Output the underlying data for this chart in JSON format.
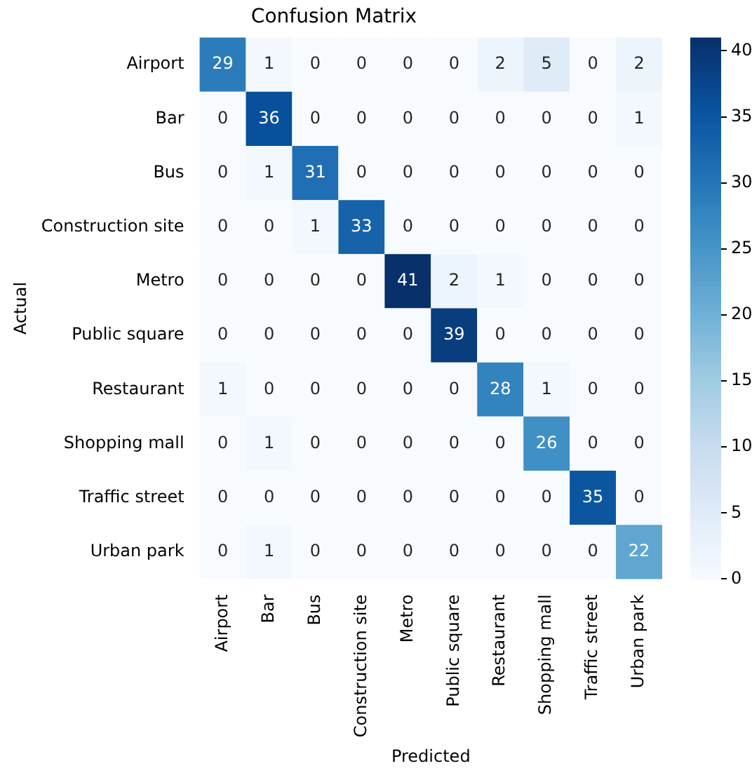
{
  "chart_data": {
    "type": "heatmap",
    "title": "Confusion Matrix",
    "xlabel": "Predicted",
    "ylabel": "Actual",
    "categories": [
      "Airport",
      "Bar",
      "Bus",
      "Construction site",
      "Metro",
      "Public square",
      "Restaurant",
      "Shopping mall",
      "Traffic street",
      "Urban park"
    ],
    "y_categories": [
      "Airport",
      "Bar",
      "Bus",
      "Construction site",
      "Metro",
      "Public square",
      "Restaurant",
      "Shopping mall",
      "Traffic street",
      "Urban park"
    ],
    "cells": [
      [
        29,
        1,
        0,
        0,
        0,
        0,
        2,
        5,
        0,
        2
      ],
      [
        0,
        36,
        0,
        0,
        0,
        0,
        0,
        0,
        0,
        1
      ],
      [
        0,
        1,
        31,
        0,
        0,
        0,
        0,
        0,
        0,
        0
      ],
      [
        0,
        0,
        1,
        33,
        0,
        0,
        0,
        0,
        0,
        0
      ],
      [
        0,
        0,
        0,
        0,
        41,
        2,
        1,
        0,
        0,
        0
      ],
      [
        0,
        0,
        0,
        0,
        0,
        39,
        0,
        0,
        0,
        0
      ],
      [
        1,
        0,
        0,
        0,
        0,
        0,
        28,
        1,
        0,
        0
      ],
      [
        0,
        1,
        0,
        0,
        0,
        0,
        0,
        26,
        0,
        0
      ],
      [
        0,
        0,
        0,
        0,
        0,
        0,
        0,
        0,
        35,
        0
      ],
      [
        0,
        1,
        0,
        0,
        0,
        0,
        0,
        0,
        0,
        22
      ]
    ],
    "data_labels": true,
    "clim": [
      0,
      41
    ],
    "cticks": [
      0,
      5,
      10,
      15,
      20,
      25,
      30,
      35,
      40
    ]
  }
}
